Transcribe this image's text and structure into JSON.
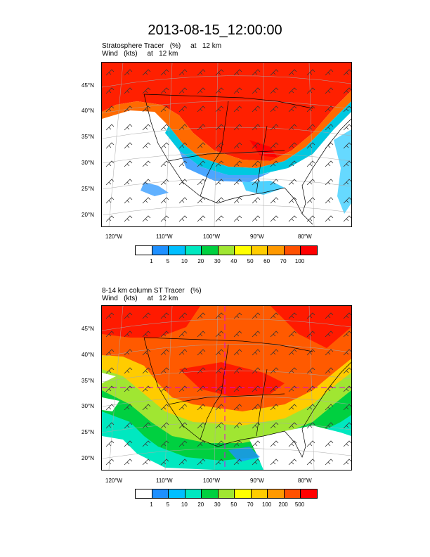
{
  "title": "2013-08-15_12:00:00",
  "panel1": {
    "line1": "Stratosphere Tracer   (%)     at   12 km",
    "line2": "Wind   (kts)     at   12 km",
    "lat_labels": [
      "45°N",
      "40°N",
      "35°N",
      "30°N",
      "25°N",
      "20°N"
    ],
    "lon_labels": [
      "120°W",
      "110°W",
      "100°W",
      "90°W",
      "80°W"
    ],
    "colorbar_labels": [
      "1",
      "5",
      "10",
      "20",
      "30",
      "40",
      "50",
      "60",
      "70",
      "100"
    ],
    "colorbar_colors": [
      "#ffffff",
      "#1e90ff",
      "#00bfff",
      "#00e8c0",
      "#00d040",
      "#a0e632",
      "#ffff00",
      "#ffcc00",
      "#ff9900",
      "#ff5000",
      "#ff0000"
    ]
  },
  "panel2": {
    "line1": "8-14 km column ST Tracer   (%)",
    "line2": "Wind   (kts)     at   12 km",
    "lat_labels": [
      "45°N",
      "40°N",
      "35°N",
      "30°N",
      "25°N",
      "20°N"
    ],
    "lon_labels": [
      "120°W",
      "110°W",
      "100°W",
      "90°W",
      "80°W"
    ],
    "colorbar_labels": [
      "1",
      "5",
      "10",
      "20",
      "30",
      "50",
      "70",
      "100",
      "200",
      "500"
    ],
    "colorbar_colors": [
      "#ffffff",
      "#1e90ff",
      "#00bfff",
      "#00e8c0",
      "#00d040",
      "#a0e632",
      "#ffff00",
      "#ffcc00",
      "#ff9900",
      "#ff5000",
      "#ff0000"
    ]
  }
}
